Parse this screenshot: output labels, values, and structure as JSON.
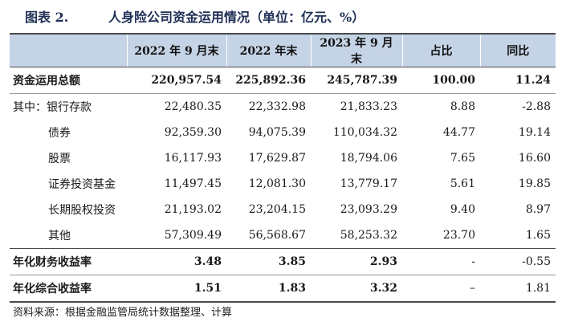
{
  "title": {
    "number": "图表 2.",
    "text": "人身险公司资金运用情况（单位：亿元、%）"
  },
  "columns": [
    "",
    "2022 年 9 月末",
    "2022 年末",
    "2023 年 9 月末",
    "占比",
    "同比"
  ],
  "rows": [
    {
      "label": "资金运用总额",
      "values": [
        "220,957.54",
        "225,892.36",
        "245,787.39",
        "100.00",
        "11.24"
      ]
    },
    {
      "label": "其中：银行存款",
      "values": [
        "22,480.35",
        "22,332.98",
        "21,833.23",
        "8.88",
        "-2.88"
      ]
    },
    {
      "label": "债券",
      "values": [
        "92,359.30",
        "94,075.39",
        "110,034.32",
        "44.77",
        "19.14"
      ]
    },
    {
      "label": "股票",
      "values": [
        "16,117.93",
        "17,629.87",
        "18,794.06",
        "7.65",
        "16.60"
      ]
    },
    {
      "label": "证券投资基金",
      "values": [
        "11,497.45",
        "12,081.30",
        "13,779.17",
        "5.61",
        "19.85"
      ]
    },
    {
      "label": "长期股权投资",
      "values": [
        "21,193.02",
        "23,204.15",
        "23,093.29",
        "9.40",
        "8.97"
      ]
    },
    {
      "label": "其他",
      "values": [
        "57,309.49",
        "56,568.67",
        "58,253.32",
        "23.70",
        "1.65"
      ]
    },
    {
      "label": "年化财务收益率",
      "values": [
        "3.48",
        "3.85",
        "2.93",
        "-",
        "-0.55"
      ]
    },
    {
      "label": "年化综合收益率",
      "values": [
        "1.51",
        "1.83",
        "3.32",
        "–",
        "1.81"
      ]
    }
  ],
  "footnote": "资料来源：根据金融监管局统计数据整理、计算"
}
